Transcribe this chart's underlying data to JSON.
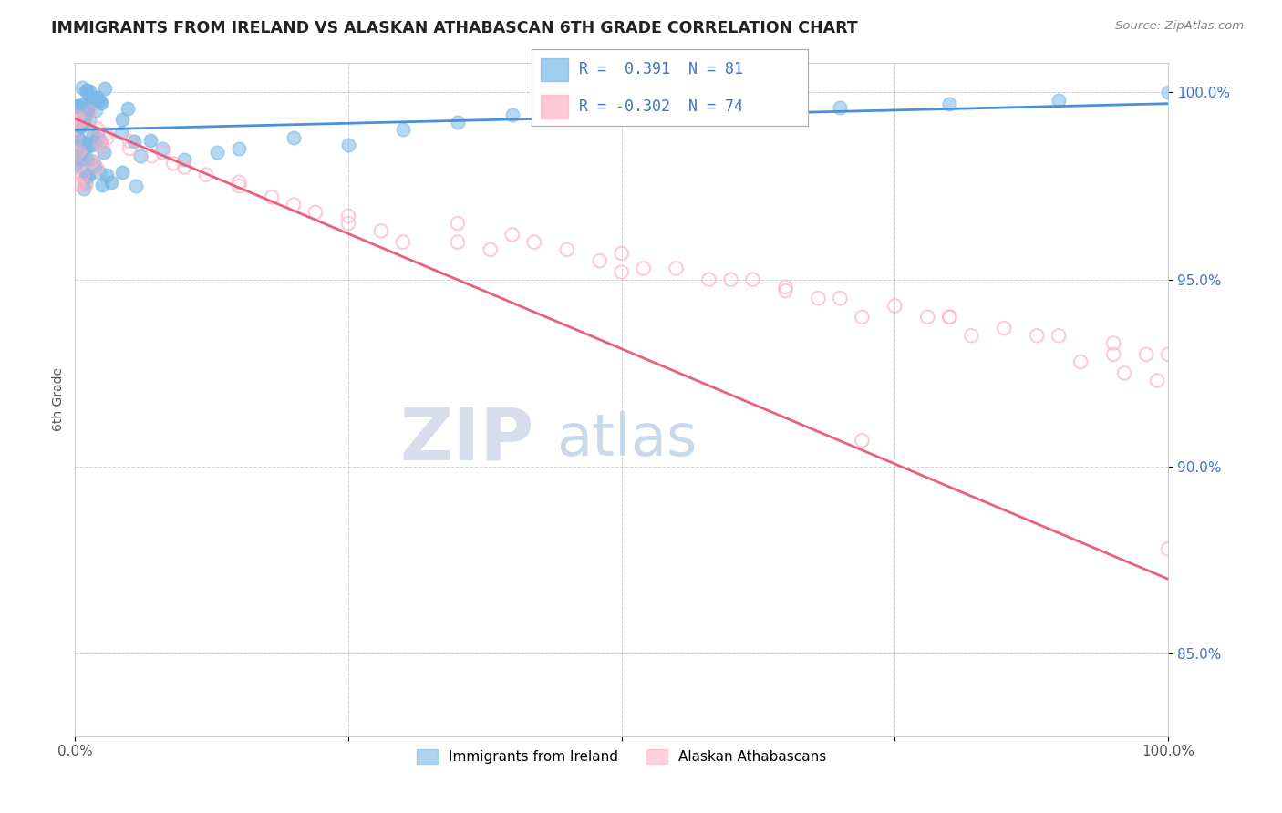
{
  "title": "IMMIGRANTS FROM IRELAND VS ALASKAN ATHABASCAN 6TH GRADE CORRELATION CHART",
  "source": "Source: ZipAtlas.com",
  "ylabel": "6th Grade",
  "x_min": 0.0,
  "x_max": 1.0,
  "y_min": 0.828,
  "y_max": 1.008,
  "y_ticks": [
    0.85,
    0.9,
    0.95,
    1.0
  ],
  "y_tick_labels": [
    "85.0%",
    "90.0%",
    "95.0%",
    "100.0%"
  ],
  "blue_R": 0.391,
  "blue_N": 81,
  "pink_R": -0.302,
  "pink_N": 74,
  "blue_color": "#7ab8e8",
  "pink_color": "#ffb3c6",
  "blue_line_color": "#4a90d9",
  "pink_line_color": "#e8607a",
  "legend_label_blue": "Immigrants from Ireland",
  "legend_label_pink": "Alaskan Athabascans",
  "watermark_zip": "ZIP",
  "watermark_atlas": "atlas",
  "background_color": "#ffffff",
  "grid_color": "#bbbbbb",
  "blue_trend_x0": 0.0,
  "blue_trend_y0": 0.99,
  "blue_trend_x1": 1.0,
  "blue_trend_y1": 0.997,
  "pink_trend_x0": 0.0,
  "pink_trend_y0": 0.993,
  "pink_trend_x1": 1.0,
  "pink_trend_y1": 0.87
}
